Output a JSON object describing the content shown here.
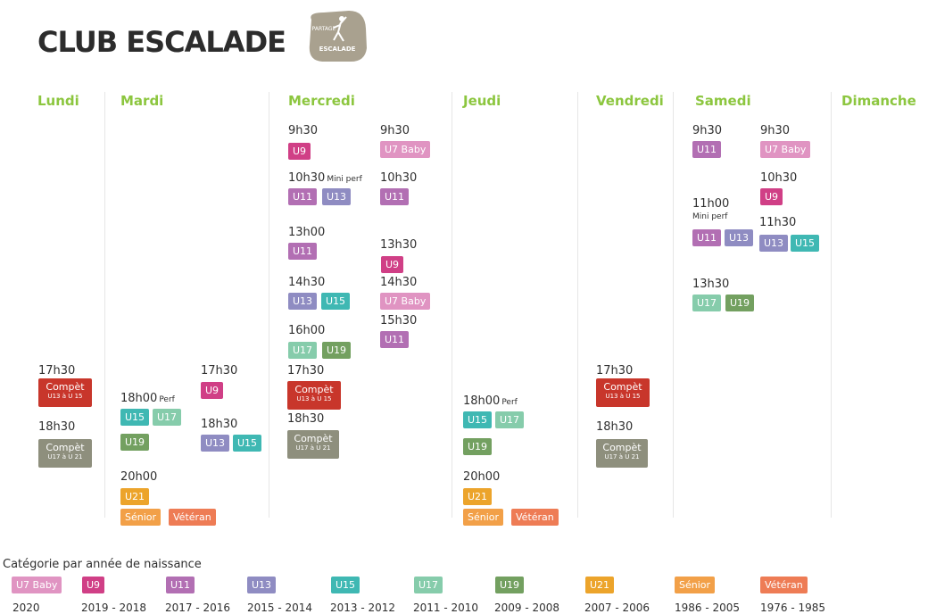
{
  "header": {
    "title": "CLUB ESCALADE",
    "logo_top": "PARTAGE",
    "logo_bottom": "ESCALADE"
  },
  "colors": {
    "u7": "#e094c2",
    "u9": "#d03f86",
    "u11": "#b26fb3",
    "u13": "#8f8cc2",
    "u15": "#3fb8b3",
    "u17": "#86ccab",
    "u19": "#73a060",
    "u21": "#eca42b",
    "senior": "#f2a048",
    "veteran": "#ee7c55",
    "compet1": "#c8362b",
    "compet2": "#8e8f7d",
    "day": "#8cc63f"
  },
  "days": [
    "Lundi",
    "Mardi",
    "Mercredi",
    "Jeudi",
    "Vendredi",
    "Samedi",
    "Dimanche"
  ],
  "labels": {
    "u7": "U7 Baby",
    "u9": "U9",
    "u11": "U11",
    "u13": "U13",
    "u15": "U15",
    "u17": "U17",
    "u19": "U19",
    "u21": "U21",
    "senior": "Sénior",
    "veteran": "Vétéran",
    "compet": "Compèt",
    "compet_u13_u15": "U13 à U 15",
    "compet_u17_u21": "U17 à U 21",
    "perf": "Perf",
    "mini_perf": "Mini perf"
  },
  "times": {
    "t0930": "9h30",
    "t1030": "10h30",
    "t1100": "11h00",
    "t1130": "11h30",
    "t1300": "13h00",
    "t1330": "13h30",
    "t1430": "14h30",
    "t1530": "15h30",
    "t1600": "16h00",
    "t1730": "17h30",
    "t1800": "18h00",
    "t1830": "18h30",
    "t2000": "20h00"
  },
  "legend": {
    "title": "Catégorie par année de naissance",
    "years": {
      "u7": "2020",
      "u9": "2019 - 2018",
      "u11": "2017 - 2016",
      "u13": "2015 - 2014",
      "u15": "2013 - 2012",
      "u17": "2011 - 2010",
      "u19": "2009 - 2008",
      "u21": "2007 - 2006",
      "senior": "1986 - 2005",
      "veteran": "1976 - 1985"
    }
  }
}
